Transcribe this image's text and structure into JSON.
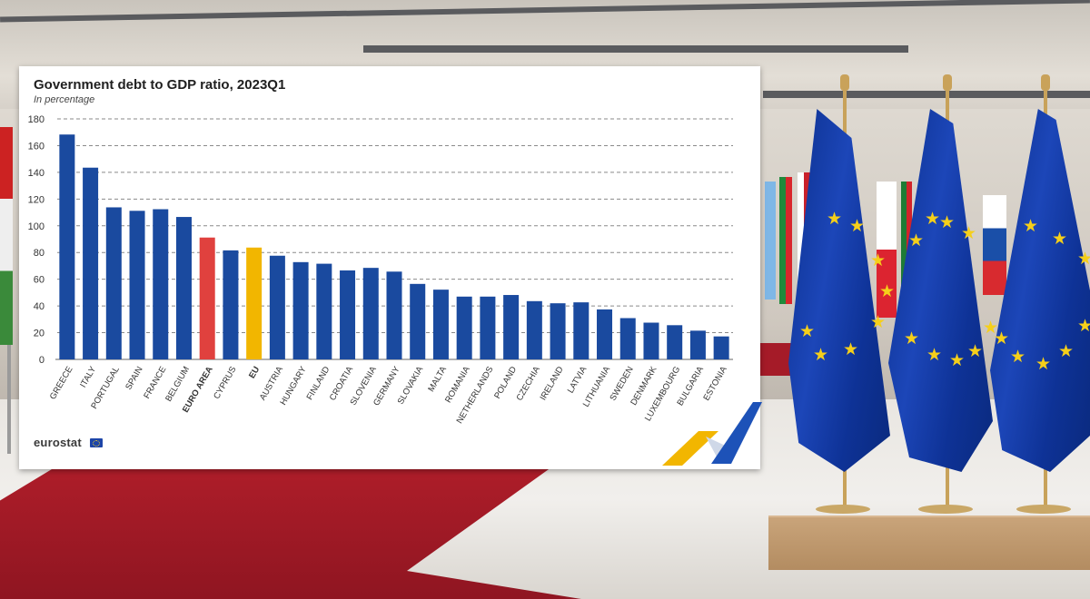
{
  "chart_data": {
    "type": "bar",
    "title": "Government debt to GDP ratio, 2023Q1",
    "subtitle": "In percentage",
    "categories": [
      "GREECE",
      "ITALY",
      "PORTUGAL",
      "SPAIN",
      "FRANCE",
      "BELGIUM",
      "EURO AREA",
      "CYPRUS",
      "EU",
      "AUSTRIA",
      "HUNGARY",
      "FINLAND",
      "CROATIA",
      "SLOVENIA",
      "GERMANY",
      "SLOVAKIA",
      "MALTA",
      "ROMANIA",
      "NETHERLANDS",
      "POLAND",
      "CZECHIA",
      "IRELAND",
      "LATVIA",
      "LITHUANIA",
      "SWEDEN",
      "DENMARK",
      "LUXEMBOURG",
      "BULGARIA",
      "ESTONIA"
    ],
    "values": [
      168.3,
      143.5,
      113.8,
      111.2,
      112.4,
      106.6,
      91.2,
      81.6,
      83.7,
      77.6,
      72.8,
      71.6,
      66.6,
      68.5,
      65.7,
      56.5,
      52.2,
      47.0,
      47.0,
      48.2,
      43.6,
      42.0,
      42.7,
      37.4,
      30.9,
      27.5,
      25.6,
      21.5,
      17.2
    ],
    "highlight": {
      "EURO AREA": "#e0413e",
      "EU": "#f2b600"
    },
    "bold_categories": [
      "EURO AREA",
      "EU"
    ],
    "bar_color": "#1a4a9f",
    "ylim": [
      0,
      180
    ],
    "yticks": [
      0,
      20,
      40,
      60,
      80,
      100,
      120,
      140,
      160,
      180
    ],
    "grid": true,
    "xlabel": "",
    "ylabel": ""
  },
  "logo": "eurostat",
  "colors": {
    "eu_blue": "#0e3494",
    "eu_star": "#f5cf1a"
  }
}
